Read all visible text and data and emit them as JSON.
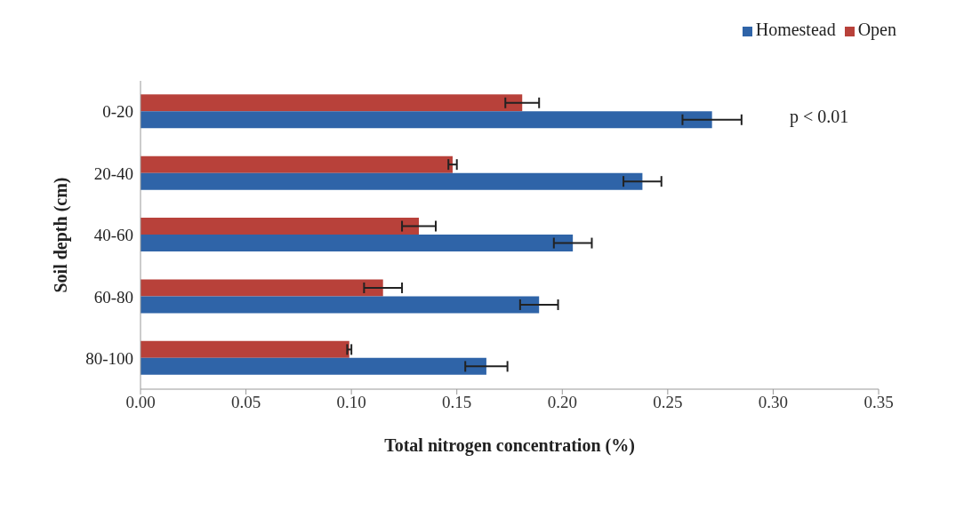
{
  "chart_data": {
    "type": "bar",
    "orientation": "horizontal",
    "xlabel": "Total nitrogen concentration (%)",
    "ylabel": "Soil depth (cm)",
    "categories": [
      "0-20",
      "20-40",
      "40-60",
      "60-80",
      "80-100"
    ],
    "series": [
      {
        "name": "Open",
        "color": "#b8413a",
        "values": [
          0.181,
          0.148,
          0.132,
          0.115,
          0.099
        ],
        "errors": [
          0.008,
          0.002,
          0.008,
          0.009,
          0.001
        ]
      },
      {
        "name": "Homestead",
        "color": "#2f64a8",
        "values": [
          0.271,
          0.238,
          0.205,
          0.189,
          0.164
        ],
        "errors": [
          0.014,
          0.009,
          0.009,
          0.009,
          0.01
        ]
      }
    ],
    "xlim": [
      0,
      0.35
    ],
    "xticks": [
      {
        "value": 0,
        "label": "0.00"
      },
      {
        "value": 0.05,
        "label": "0.05"
      },
      {
        "value": 0.1,
        "label": "0.10"
      },
      {
        "value": 0.15,
        "label": "0.15"
      },
      {
        "value": 0.2,
        "label": "0.20"
      },
      {
        "value": 0.25,
        "label": "0.25"
      },
      {
        "value": 0.3,
        "label": "0.30"
      },
      {
        "value": 0.35,
        "label": "0.35"
      }
    ],
    "legend": "top right",
    "grid": false,
    "annotations": [
      "p < 0.01"
    ]
  }
}
